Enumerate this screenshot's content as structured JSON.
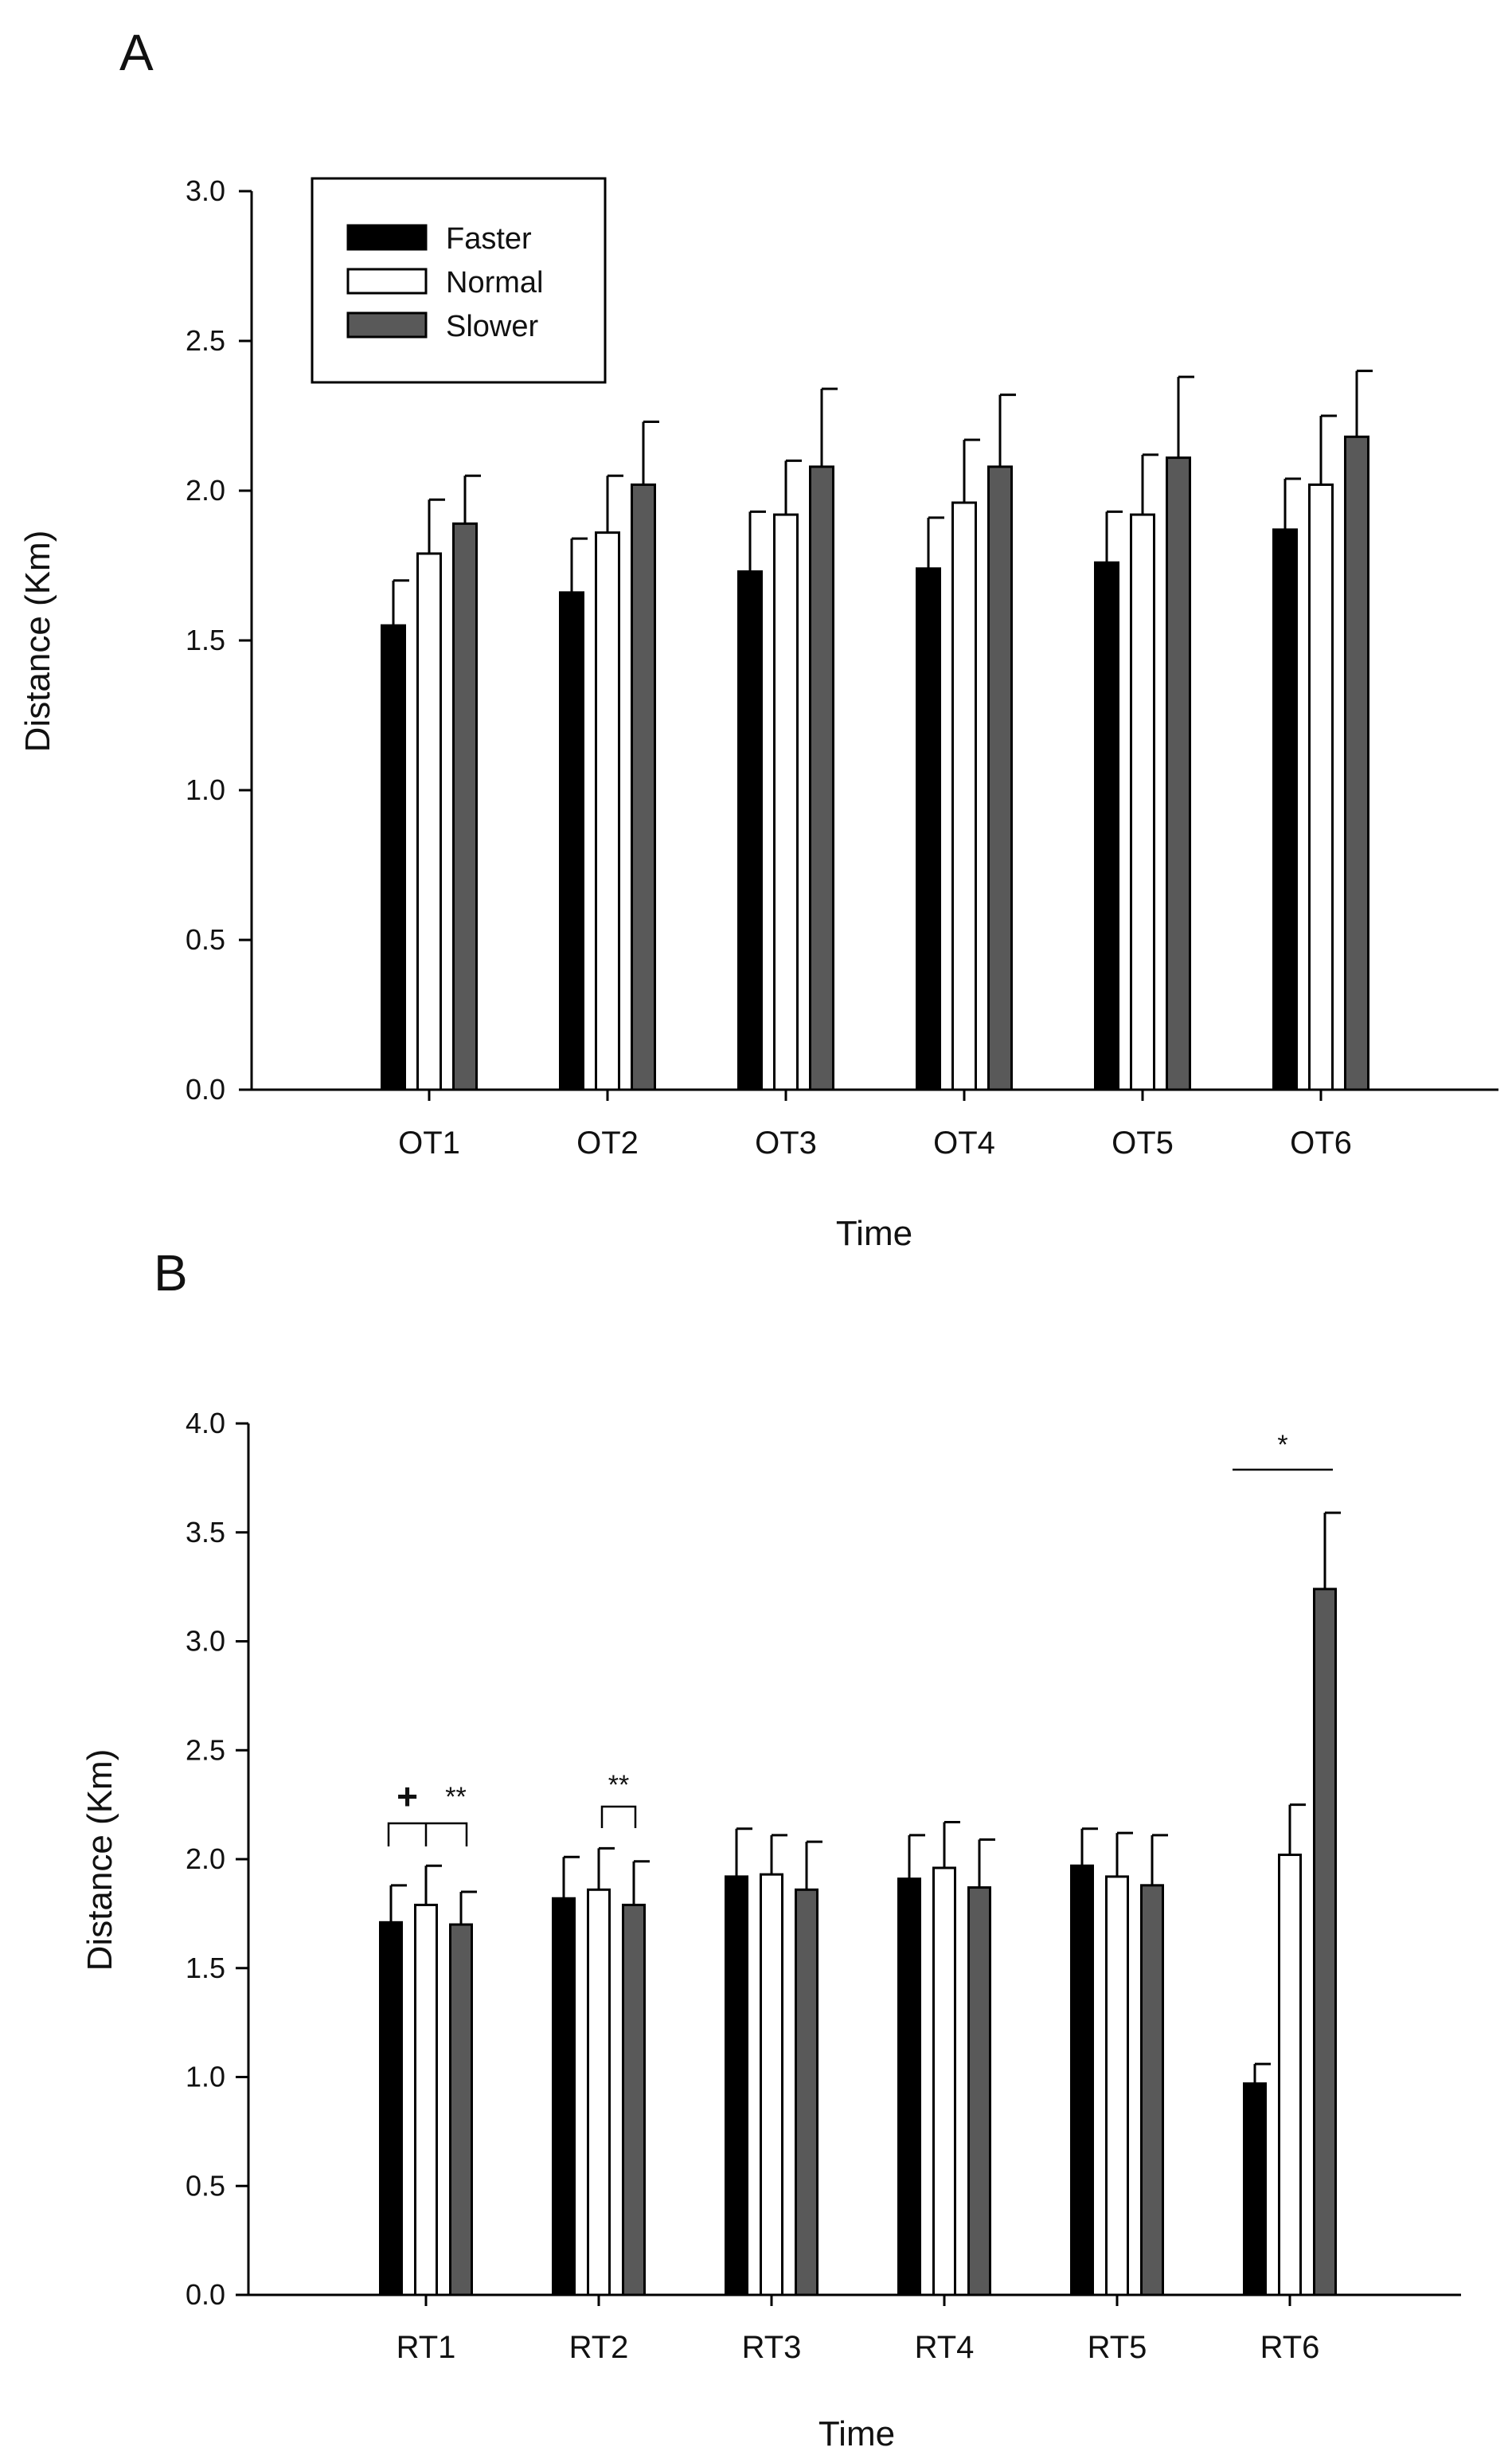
{
  "chart_data": [
    {
      "type": "bar",
      "panel_label": "A",
      "categories": [
        "OT1",
        "OT2",
        "OT3",
        "OT4",
        "OT5",
        "OT6"
      ],
      "series": [
        {
          "name": "Faster",
          "values": [
            1.55,
            1.66,
            1.73,
            1.74,
            1.76,
            1.87
          ],
          "errors": [
            0.15,
            0.18,
            0.2,
            0.17,
            0.17,
            0.17
          ]
        },
        {
          "name": "Normal",
          "values": [
            1.79,
            1.86,
            1.92,
            1.96,
            1.92,
            2.02
          ],
          "errors": [
            0.18,
            0.19,
            0.18,
            0.21,
            0.2,
            0.23
          ]
        },
        {
          "name": "Slower",
          "values": [
            1.89,
            2.02,
            2.08,
            2.08,
            2.11,
            2.18
          ],
          "errors": [
            0.16,
            0.21,
            0.26,
            0.24,
            0.27,
            0.22
          ]
        }
      ],
      "colors": [
        "#000000",
        "#ffffff",
        "#595959"
      ],
      "title": "",
      "xlabel": "Time",
      "ylabel": "Distance (Km)",
      "ylim": [
        0,
        3.0
      ],
      "yticks": [
        "0.0",
        "0.5",
        "1.0",
        "1.5",
        "2.0",
        "2.5",
        "3.0"
      ],
      "legend": {
        "entries": [
          "Faster",
          "Normal",
          "Slower"
        ],
        "position": "top-left"
      },
      "annotations": []
    },
    {
      "type": "bar",
      "panel_label": "B",
      "categories": [
        "RT1",
        "RT2",
        "RT3",
        "RT4",
        "RT5",
        "RT6"
      ],
      "series": [
        {
          "name": "Faster",
          "values": [
            1.71,
            1.82,
            1.92,
            1.91,
            1.97,
            0.97
          ],
          "errors": [
            0.17,
            0.19,
            0.22,
            0.2,
            0.17,
            0.09
          ]
        },
        {
          "name": "Normal",
          "values": [
            1.79,
            1.86,
            1.93,
            1.96,
            1.92,
            2.02
          ],
          "errors": [
            0.18,
            0.19,
            0.18,
            0.21,
            0.2,
            0.23
          ]
        },
        {
          "name": "Slower",
          "values": [
            1.7,
            1.79,
            1.86,
            1.87,
            1.88,
            3.24
          ],
          "errors": [
            0.15,
            0.2,
            0.22,
            0.22,
            0.23,
            0.35
          ]
        }
      ],
      "colors": [
        "#000000",
        "#ffffff",
        "#595959"
      ],
      "title": "",
      "xlabel": "Time",
      "ylabel": "Distance (Km)",
      "ylim": [
        0,
        4.0
      ],
      "yticks": [
        "0.0",
        "0.5",
        "1.0",
        "1.5",
        "2.0",
        "2.5",
        "3.0",
        "3.5",
        "4.0"
      ],
      "legend": null,
      "annotations": [
        {
          "text": "+",
          "category": "RT1",
          "kind": "bracket-span",
          "from_series": 0,
          "to_series": 2
        },
        {
          "text": "**",
          "category": "RT1",
          "kind": "bracket-drop"
        },
        {
          "text": "**",
          "category": "RT2",
          "kind": "bracket-pair",
          "from_series": 1,
          "to_series": 2
        },
        {
          "text": "*",
          "category": "RT6",
          "kind": "line",
          "from_series": 0,
          "to_series": 2
        }
      ]
    }
  ]
}
